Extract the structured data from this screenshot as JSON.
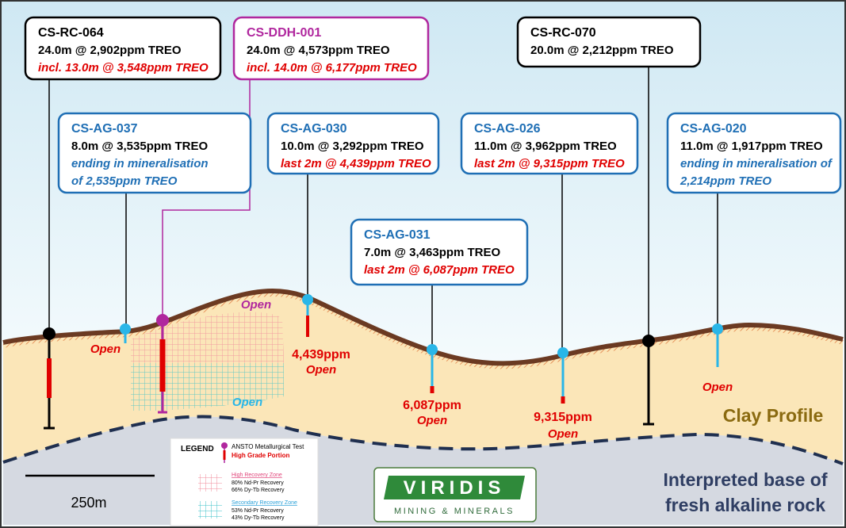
{
  "callouts": [
    {
      "title": "CS-RC-064",
      "lines": [
        "24.0m @ 2,902ppm TREO",
        "incl. 13.0m @ 3,548ppm TREO"
      ]
    },
    {
      "title": "CS-DDH-001",
      "lines": [
        "24.0m @ 4,573ppm TREO",
        "incl. 14.0m @ 6,177ppm TREO"
      ]
    },
    {
      "title": "CS-RC-070",
      "lines": [
        "20.0m @ 2,212ppm TREO"
      ]
    },
    {
      "title": "CS-AG-037",
      "lines": [
        "8.0m @ 3,535ppm TREO",
        "ending in mineralisation",
        "of 2,535ppm TREO"
      ]
    },
    {
      "title": "CS-AG-030",
      "lines": [
        "10.0m @ 3,292ppm TREO",
        "last 2m @ 4,439ppm TREO"
      ]
    },
    {
      "title": "CS-AG-026",
      "lines": [
        "11.0m @ 3,962ppm TREO",
        "last 2m @ 9,315ppm TREO"
      ]
    },
    {
      "title": "CS-AG-020",
      "lines": [
        "11.0m @ 1,917ppm TREO",
        "ending in mineralisation of",
        "2,214ppm TREO"
      ]
    },
    {
      "title": "CS-AG-031",
      "lines": [
        "7.0m @ 3,463ppm TREO",
        "last 2m @ 6,087ppm TREO"
      ]
    }
  ],
  "annotations": [
    "Open",
    "Open",
    "4,439ppm",
    "Open",
    "Open",
    "6,087ppm",
    "Open",
    "9,315ppm",
    "Open",
    "Open"
  ],
  "clay_profile": "Clay Profile",
  "base_label": [
    "Interpreted base of",
    "fresh alkaline rock"
  ],
  "scale_bar": "250m",
  "legend": {
    "title": "LEGEND",
    "test": "ANSTO Metallurgical Test",
    "high_grade": "High Grade Portion",
    "high_zone": {
      "name": "High Recovery Zone",
      "lines": [
        "80% Nd-Pr Recovery",
        "66% Dy-Tb Recovery"
      ]
    },
    "secondary_zone": {
      "name": "Secondary Recovery Zone",
      "lines": [
        "53% Nd-Pr Recovery",
        "43% Dy-Tb Recovery"
      ]
    }
  },
  "logo": {
    "name": "VIRIDIS",
    "tagline": "MINING & MINERALS"
  }
}
